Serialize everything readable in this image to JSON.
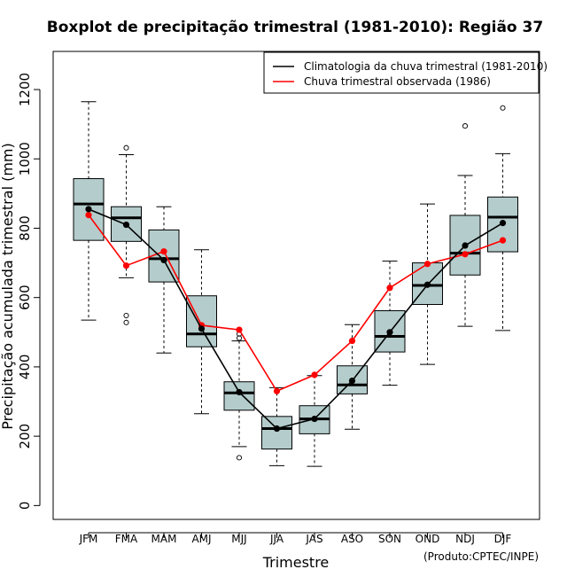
{
  "chart_data": {
    "type": "boxplot",
    "title": "Boxplot de precipitação trimestral (1981-2010): Região 37",
    "xlabel": "Trimestre",
    "ylabel": "Precipitação acumulada trimestral (mm)",
    "credit": "(Produto:CPTEC/INPE)",
    "ylim": [
      -40,
      1310
    ],
    "yticks": [
      0,
      200,
      400,
      600,
      800,
      1000,
      1200
    ],
    "categories": [
      "JFM",
      "FMA",
      "MAM",
      "AMJ",
      "MJJ",
      "JJA",
      "JAS",
      "ASO",
      "SON",
      "OND",
      "NDJ",
      "DJF"
    ],
    "boxes": [
      {
        "category": "JFM",
        "whisker_low": 535,
        "q1": 765,
        "median": 870,
        "q3": 943,
        "whisker_high": 1165,
        "outliers": []
      },
      {
        "category": "FMA",
        "whisker_low": 657,
        "q1": 762,
        "median": 830,
        "q3": 862,
        "whisker_high": 1012,
        "outliers": [
          1032,
          548,
          528
        ]
      },
      {
        "category": "MAM",
        "whisker_low": 440,
        "q1": 645,
        "median": 712,
        "q3": 795,
        "whisker_high": 862,
        "outliers": []
      },
      {
        "category": "AMJ",
        "whisker_low": 265,
        "q1": 458,
        "median": 495,
        "q3": 605,
        "whisker_high": 738,
        "outliers": []
      },
      {
        "category": "MJJ",
        "whisker_low": 170,
        "q1": 275,
        "median": 325,
        "q3": 357,
        "whisker_high": 475,
        "outliers": [
          495,
          483,
          138
        ]
      },
      {
        "category": "JJA",
        "whisker_low": 115,
        "q1": 163,
        "median": 222,
        "q3": 257,
        "whisker_high": 340,
        "outliers": []
      },
      {
        "category": "JAS",
        "whisker_low": 113,
        "q1": 207,
        "median": 250,
        "q3": 288,
        "whisker_high": 375,
        "outliers": []
      },
      {
        "category": "ASO",
        "whisker_low": 220,
        "q1": 322,
        "median": 348,
        "q3": 403,
        "whisker_high": 522,
        "outliers": []
      },
      {
        "category": "SON",
        "whisker_low": 347,
        "q1": 443,
        "median": 488,
        "q3": 562,
        "whisker_high": 705,
        "outliers": []
      },
      {
        "category": "OND",
        "whisker_low": 407,
        "q1": 580,
        "median": 635,
        "q3": 700,
        "whisker_high": 870,
        "outliers": []
      },
      {
        "category": "NDJ",
        "whisker_low": 517,
        "q1": 665,
        "median": 728,
        "q3": 837,
        "whisker_high": 952,
        "outliers": [
          1095
        ]
      },
      {
        "category": "DJF",
        "whisker_low": 505,
        "q1": 732,
        "median": 832,
        "q3": 890,
        "whisker_high": 1015,
        "outliers": [
          1147
        ]
      }
    ],
    "series": [
      {
        "name": "Climatologia da chuva trimestral (1981-2010)",
        "color": "#000000",
        "values": [
          855,
          810,
          708,
          510,
          327,
          222,
          250,
          360,
          500,
          637,
          750,
          815
        ]
      },
      {
        "name": "Chuva trimestral observada (1986)",
        "color": "#ff0000",
        "values": [
          838,
          692,
          733,
          520,
          507,
          330,
          377,
          475,
          628,
          697,
          725,
          765
        ]
      }
    ],
    "box_fill": "#b4cccc",
    "legend_position": "top-right"
  }
}
